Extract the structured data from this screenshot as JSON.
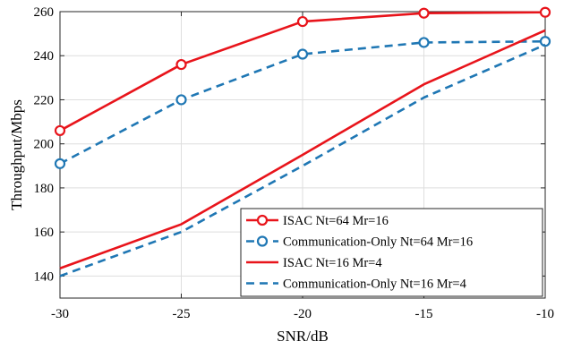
{
  "chart_data": {
    "type": "line",
    "title": "",
    "xlabel": "SNR/dB",
    "ylabel": "Throughput/Mbps",
    "x": [
      -30,
      -25,
      -20,
      -15,
      -10
    ],
    "xlim": [
      -30,
      -10
    ],
    "ylim": [
      130,
      260
    ],
    "xticks": [
      "-30",
      "-25",
      "-20",
      "-15",
      "-10"
    ],
    "yticks": [
      "140",
      "160",
      "180",
      "200",
      "220",
      "240",
      "260"
    ],
    "grid": true,
    "legend_position": "bottom-right",
    "series": [
      {
        "name": "ISAC Nt=64 Mr=16",
        "values": [
          206,
          236,
          255.5,
          259.3,
          259.7
        ],
        "color": "#e8141b",
        "style": "solid",
        "marker": "circle"
      },
      {
        "name": "Communication-Only Nt=64 Mr=16",
        "values": [
          191,
          220,
          240.7,
          246,
          246.5
        ],
        "color": "#1f77b4",
        "style": "dashed",
        "marker": "circle"
      },
      {
        "name": "ISAC Nt=16 Mr=4",
        "values": [
          143.5,
          163.5,
          195,
          227,
          251.5
        ],
        "color": "#e8141b",
        "style": "solid",
        "marker": "none"
      },
      {
        "name": "Communication-Only Nt=16 Mr=4",
        "values": [
          140,
          160,
          190,
          221,
          245
        ],
        "color": "#1f77b4",
        "style": "dashed",
        "marker": "none"
      }
    ]
  }
}
